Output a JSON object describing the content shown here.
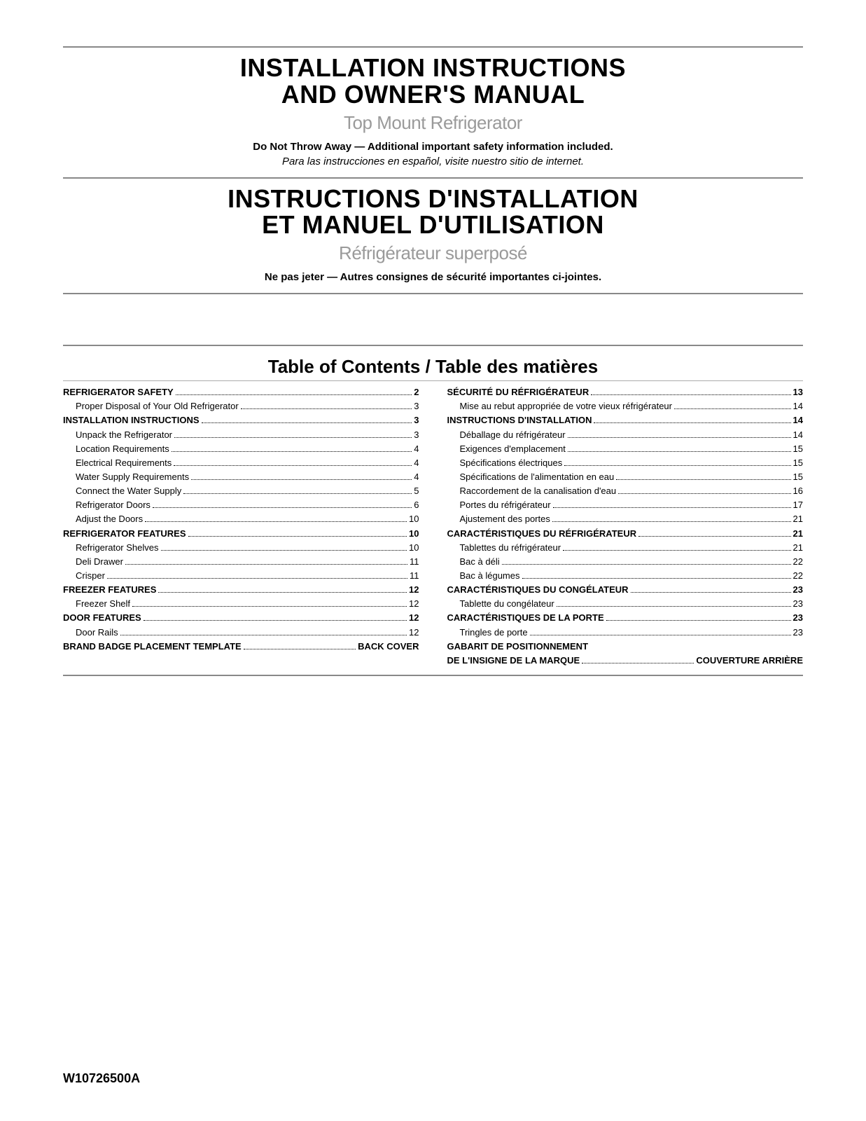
{
  "colors": {
    "text": "#000000",
    "subtitle_gray": "#9a9a9a",
    "rule_thick": "#888888",
    "rule_thin": "#aaaaaa",
    "background": "#ffffff"
  },
  "header_en": {
    "title_l1": "INSTALLATION INSTRUCTIONS",
    "title_l2": "AND OWNER'S MANUAL",
    "subtitle": "Top Mount Refrigerator",
    "bold_line": "Do Not Throw Away — Additional important safety information included.",
    "italic_line": "Para las instrucciones en español, visite nuestro sitio de internet."
  },
  "header_fr": {
    "title_l1": "INSTRUCTIONS D'INSTALLATION",
    "title_l2": "ET MANUEL D'UTILISATION",
    "subtitle": "Réfrigérateur superposé",
    "bold_line": "Ne pas jeter — Autres consignes de sécurité importantes ci-jointes."
  },
  "toc_heading": "Table of Contents / Table des matières",
  "toc_left": [
    {
      "label": "REFRIGERATOR SAFETY",
      "page": "2",
      "bold": true
    },
    {
      "label": "Proper Disposal of Your Old Refrigerator",
      "page": "3",
      "sub": true
    },
    {
      "label": "INSTALLATION INSTRUCTIONS",
      "page": "3",
      "bold": true
    },
    {
      "label": "Unpack the Refrigerator",
      "page": "3",
      "sub": true
    },
    {
      "label": "Location Requirements",
      "page": "4",
      "sub": true
    },
    {
      "label": "Electrical Requirements",
      "page": "4",
      "sub": true
    },
    {
      "label": "Water Supply Requirements",
      "page": "4",
      "sub": true
    },
    {
      "label": "Connect the Water Supply",
      "page": "5",
      "sub": true
    },
    {
      "label": "Refrigerator Doors",
      "page": "6",
      "sub": true
    },
    {
      "label": "Adjust the Doors",
      "page": "10",
      "sub": true
    },
    {
      "label": "REFRIGERATOR FEATURES",
      "page": "10",
      "bold": true
    },
    {
      "label": "Refrigerator Shelves",
      "page": "10",
      "sub": true
    },
    {
      "label": "Deli Drawer",
      "page": "11",
      "sub": true
    },
    {
      "label": "Crisper",
      "page": "11",
      "sub": true
    },
    {
      "label": "FREEZER FEATURES",
      "page": "12",
      "bold": true
    },
    {
      "label": "Freezer Shelf",
      "page": "12",
      "sub": true
    },
    {
      "label": "DOOR FEATURES",
      "page": "12",
      "bold": true
    },
    {
      "label": "Door Rails",
      "page": "12",
      "sub": true
    },
    {
      "label": "BRAND BADGE PLACEMENT TEMPLATE",
      "page": "BACK COVER",
      "bold": true
    }
  ],
  "toc_right": [
    {
      "label": "SÉCURITÉ DU RÉFRIGÉRATEUR",
      "page": "13",
      "bold": true
    },
    {
      "label": "Mise au rebut appropriée de votre vieux réfrigérateur",
      "page": "14",
      "sub": true
    },
    {
      "label": "INSTRUCTIONS D'INSTALLATION",
      "page": "14",
      "bold": true
    },
    {
      "label": "Déballage du réfrigérateur",
      "page": "14",
      "sub": true
    },
    {
      "label": "Exigences d'emplacement",
      "page": "15",
      "sub": true
    },
    {
      "label": "Spécifications électriques",
      "page": "15",
      "sub": true
    },
    {
      "label": "Spécifications de l'alimentation en eau",
      "page": "15",
      "sub": true
    },
    {
      "label": "Raccordement de la canalisation d'eau",
      "page": "16",
      "sub": true
    },
    {
      "label": "Portes du réfrigérateur",
      "page": "17",
      "sub": true
    },
    {
      "label": "Ajustement des portes",
      "page": "21",
      "sub": true
    },
    {
      "label": "CARACTÉRISTIQUES DU RÉFRIGÉRATEUR",
      "page": "21",
      "bold": true
    },
    {
      "label": "Tablettes du réfrigérateur",
      "page": "21",
      "sub": true
    },
    {
      "label": "Bac à déli",
      "page": "22",
      "sub": true
    },
    {
      "label": "Bac à légumes",
      "page": "22",
      "sub": true
    },
    {
      "label": "CARACTÉRISTIQUES DU CONGÉLATEUR",
      "page": "23",
      "bold": true
    },
    {
      "label": "Tablette du congélateur",
      "page": "23",
      "sub": true
    },
    {
      "label": "CARACTÉRISTIQUES DE LA PORTE",
      "page": "23",
      "bold": true
    },
    {
      "label": "Tringles de porte",
      "page": "23",
      "sub": true
    },
    {
      "label": "GABARIT DE POSITIONNEMENT",
      "page": "",
      "bold": true,
      "nodots": true
    },
    {
      "label": "DE L'INSIGNE DE LA MARQUE",
      "page": "COUVERTURE ARRIÈRE",
      "bold": true
    }
  ],
  "doc_code": "W10726500A"
}
